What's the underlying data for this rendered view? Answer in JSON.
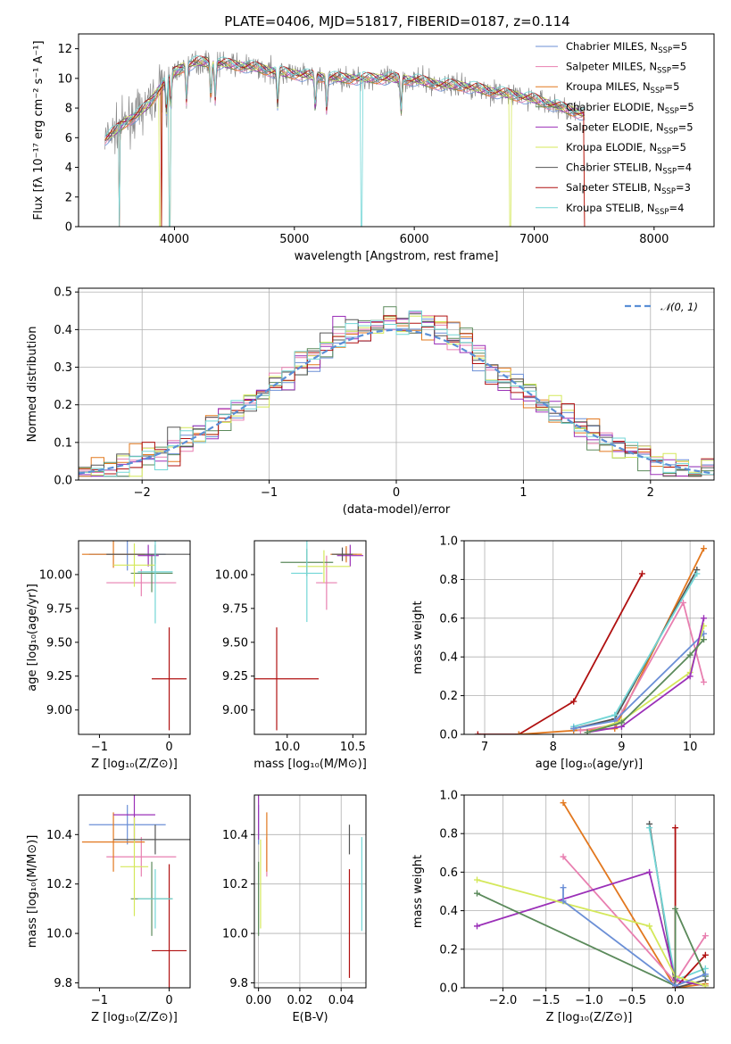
{
  "figure": {
    "title": "PLATE=0406, MJD=51817, FIBERID=0187, z=0.114"
  },
  "colors": {
    "Chabrier MILES": "#6b8fd6",
    "Salpeter MILES": "#e87fb0",
    "Kroupa MILES": "#e2781f",
    "Chabrier ELODIE": "#5b8a5b",
    "Salpeter ELODIE": "#9b30b8",
    "Kroupa ELODIE": "#d4e85a",
    "Chabrier STELIB": "#555555",
    "Salpeter STELIB": "#b01010",
    "Kroupa STELIB": "#72d6d6",
    "data": "#8a8a8a",
    "gauss": "#5a8fd6"
  },
  "chart_data": [
    {
      "id": "spectrum",
      "type": "line",
      "xlabel": "wavelength [Angstrom, rest frame]",
      "ylabel": "Flux [fλ 10⁻¹⁷ erg cm⁻² s⁻¹ A⁻¹]",
      "xlim": [
        3200,
        8500
      ],
      "ylim": [
        0,
        13
      ],
      "xticks": [
        4000,
        5000,
        6000,
        7000,
        8000
      ],
      "yticks": [
        0,
        2,
        4,
        6,
        8,
        10,
        12
      ],
      "legend_position": "top-right",
      "legend": [
        {
          "name": "Chabrier MILES",
          "nssp": "5"
        },
        {
          "name": "Salpeter MILES",
          "nssp": "5"
        },
        {
          "name": "Kroupa MILES",
          "nssp": "5"
        },
        {
          "name": "Chabrier ELODIE",
          "nssp": "5"
        },
        {
          "name": "Salpeter ELODIE",
          "nssp": "5"
        },
        {
          "name": "Kroupa ELODIE",
          "nssp": "5"
        },
        {
          "name": "Chabrier STELIB",
          "nssp": "4"
        },
        {
          "name": "Salpeter STELIB",
          "nssp": "3"
        },
        {
          "name": "Kroupa STELIB",
          "nssp": "4"
        }
      ],
      "continuum": [
        [
          3420,
          5.9
        ],
        [
          3500,
          6.4
        ],
        [
          3600,
          7.1
        ],
        [
          3700,
          7.6
        ],
        [
          3800,
          8.4
        ],
        [
          3900,
          9.6
        ],
        [
          4000,
          10.4
        ],
        [
          4100,
          10.9
        ],
        [
          4200,
          11.1
        ],
        [
          4300,
          11.1
        ],
        [
          4400,
          11.0
        ],
        [
          4500,
          10.9
        ],
        [
          4600,
          10.8
        ],
        [
          4700,
          10.7
        ],
        [
          4800,
          10.5
        ],
        [
          4900,
          10.4
        ],
        [
          5000,
          10.3
        ],
        [
          5200,
          10.1
        ],
        [
          5400,
          10.0
        ],
        [
          5600,
          10.0
        ],
        [
          5800,
          10.0
        ],
        [
          6000,
          9.9
        ],
        [
          6200,
          9.6
        ],
        [
          6400,
          9.5
        ],
        [
          6600,
          9.2
        ],
        [
          6800,
          8.9
        ],
        [
          7000,
          8.6
        ],
        [
          7200,
          8.1
        ],
        [
          7400,
          7.6
        ]
      ]
    },
    {
      "id": "residuals",
      "type": "line",
      "xlabel": "(data-model)/error",
      "ylabel": "Normed distribution",
      "xlim": [
        -2.5,
        2.5
      ],
      "ylim": [
        0,
        0.51
      ],
      "xticks": [
        -2,
        -1,
        0,
        1,
        2
      ],
      "yticks": [
        0.0,
        0.1,
        0.2,
        0.3,
        0.4,
        0.5
      ],
      "grid": true,
      "legend_position": "top-right",
      "legend": [
        {
          "name": "𝒩(0, 1)"
        }
      ],
      "bin_width": 0.1
    },
    {
      "id": "age-vs-Z",
      "type": "scatter",
      "xlabel": "Z [log₁₀(Z/Z⊙)]",
      "ylabel": "age  [log₁₀(age/yr)]",
      "xlim": [
        -1.3,
        0.3
      ],
      "ylim": [
        8.82,
        10.25
      ],
      "xticks": [
        -1,
        0
      ],
      "yticks": [
        9.0,
        9.25,
        9.5,
        9.75,
        10.0
      ],
      "points": [
        {
          "model": "Chabrier MILES",
          "x": -0.6,
          "y": 10.15,
          "xerr": 0.55,
          "yerr": 0.12
        },
        {
          "model": "Salpeter MILES",
          "x": -0.4,
          "y": 9.94,
          "xerr": 0.5,
          "yerr": 0.1
        },
        {
          "model": "Kroupa MILES",
          "x": -0.8,
          "y": 10.15,
          "xerr": 0.45,
          "yerr": 0.1
        },
        {
          "model": "Chabrier ELODIE",
          "x": -0.25,
          "y": 10.01,
          "xerr": 0.3,
          "yerr": 0.14
        },
        {
          "model": "Salpeter ELODIE",
          "x": -0.3,
          "y": 10.14,
          "xerr": 0.15,
          "yerr": 0.08
        },
        {
          "model": "Kroupa ELODIE",
          "x": -0.5,
          "y": 10.07,
          "xerr": 0.3,
          "yerr": 0.16
        },
        {
          "model": "Chabrier STELIB",
          "x": -0.2,
          "y": 10.15,
          "xerr": 0.7,
          "yerr": 0.07
        },
        {
          "model": "Salpeter STELIB",
          "x": 0.0,
          "y": 9.23,
          "xerr": 0.25,
          "yerr": 0.38
        },
        {
          "model": "Kroupa STELIB",
          "x": -0.2,
          "y": 10.02,
          "xerr": 0.25,
          "yerr": 0.38
        }
      ]
    },
    {
      "id": "age-vs-mass",
      "type": "scatter",
      "xlabel": "mass [log₁₀(M/M⊙)]",
      "ylabel": "",
      "xlim": [
        9.75,
        10.6
      ],
      "ylim": [
        8.82,
        10.25
      ],
      "xticks": [
        10.0,
        10.5
      ],
      "yticks": [
        9.0,
        9.25,
        9.5,
        9.75,
        10.0
      ],
      "points": [
        {
          "model": "Chabrier MILES",
          "x": 10.45,
          "y": 10.15,
          "xerr": 0.08,
          "yerr": 0.05
        },
        {
          "model": "Salpeter MILES",
          "x": 10.3,
          "y": 9.94,
          "xerr": 0.08,
          "yerr": 0.2
        },
        {
          "model": "Kroupa MILES",
          "x": 10.45,
          "y": 10.15,
          "xerr": 0.12,
          "yerr": 0.06
        },
        {
          "model": "Chabrier ELODIE",
          "x": 10.15,
          "y": 10.09,
          "xerr": 0.2,
          "yerr": 0.1
        },
        {
          "model": "Salpeter ELODIE",
          "x": 10.48,
          "y": 10.14,
          "xerr": 0.1,
          "yerr": 0.08
        },
        {
          "model": "Kroupa ELODIE",
          "x": 10.28,
          "y": 10.06,
          "xerr": 0.2,
          "yerr": 0.12
        },
        {
          "model": "Chabrier STELIB",
          "x": 10.42,
          "y": 10.15,
          "xerr": 0.08,
          "yerr": 0.05
        },
        {
          "model": "Salpeter STELIB",
          "x": 9.92,
          "y": 9.23,
          "xerr": 0.32,
          "yerr": 0.38
        },
        {
          "model": "Kroupa STELIB",
          "x": 10.15,
          "y": 10.01,
          "xerr": 0.12,
          "yerr": 0.36
        }
      ]
    },
    {
      "id": "mass-weight-vs-age",
      "type": "line",
      "xlabel": "age  [log₁₀(age/yr)]",
      "ylabel": "mass weight",
      "xlim": [
        6.7,
        10.35
      ],
      "ylim": [
        0,
        1.0
      ],
      "xticks": [
        7,
        8,
        9,
        10
      ],
      "yticks": [
        0.0,
        0.2,
        0.4,
        0.6,
        0.8,
        1.0
      ],
      "grid": true,
      "series": [
        {
          "model": "Salpeter STELIB",
          "x": [
            6.9,
            7.5,
            8.3,
            9.3
          ],
          "y": [
            0.0,
            0.0,
            0.17,
            0.83
          ]
        },
        {
          "model": "Kroupa MILES",
          "x": [
            7.5,
            8.3,
            8.9,
            10.2
          ],
          "y": [
            0.0,
            0.02,
            0.03,
            0.96
          ]
        },
        {
          "model": "Chabrier STELIB",
          "x": [
            8.3,
            8.9,
            10.1
          ],
          "y": [
            0.03,
            0.08,
            0.85
          ]
        },
        {
          "model": "Kroupa STELIB",
          "x": [
            8.3,
            8.9,
            10.1
          ],
          "y": [
            0.04,
            0.1,
            0.83
          ]
        },
        {
          "model": "Salpeter MILES",
          "x": [
            8.4,
            8.9,
            9.9,
            10.2
          ],
          "y": [
            0.02,
            0.05,
            0.68,
            0.27
          ]
        },
        {
          "model": "Chabrier MILES",
          "x": [
            8.3,
            8.9,
            10.2
          ],
          "y": [
            0.03,
            0.07,
            0.52
          ]
        },
        {
          "model": "Kroupa ELODIE",
          "x": [
            8.5,
            9.0,
            10.0,
            10.2
          ],
          "y": [
            0.01,
            0.07,
            0.32,
            0.56
          ]
        },
        {
          "model": "Salpeter ELODIE",
          "x": [
            8.5,
            9.0,
            10.0,
            10.2
          ],
          "y": [
            0.01,
            0.04,
            0.3,
            0.6
          ]
        },
        {
          "model": "Chabrier ELODIE",
          "x": [
            8.5,
            9.0,
            10.0,
            10.2
          ],
          "y": [
            0.01,
            0.06,
            0.41,
            0.49
          ]
        }
      ]
    },
    {
      "id": "mass-vs-Z",
      "type": "scatter",
      "xlabel": "Z [log₁₀(Z/Z⊙)]",
      "ylabel": "mass [log₁₀(M/M⊙)]",
      "xlim": [
        -1.3,
        0.3
      ],
      "ylim": [
        9.78,
        10.56
      ],
      "xticks": [
        -1,
        0
      ],
      "yticks": [
        9.8,
        10.0,
        10.2,
        10.4
      ],
      "points": [
        {
          "model": "Chabrier MILES",
          "x": -0.6,
          "y": 10.44,
          "xerr": 0.55,
          "yerr": 0.08
        },
        {
          "model": "Salpeter MILES",
          "x": -0.4,
          "y": 10.31,
          "xerr": 0.5,
          "yerr": 0.08
        },
        {
          "model": "Kroupa MILES",
          "x": -0.8,
          "y": 10.37,
          "xerr": 0.45,
          "yerr": 0.12
        },
        {
          "model": "Chabrier ELODIE",
          "x": -0.25,
          "y": 10.14,
          "xerr": 0.3,
          "yerr": 0.15
        },
        {
          "model": "Salpeter ELODIE",
          "x": -0.5,
          "y": 10.48,
          "xerr": 0.3,
          "yerr": 0.1
        },
        {
          "model": "Kroupa ELODIE",
          "x": -0.5,
          "y": 10.27,
          "xerr": 0.2,
          "yerr": 0.2
        },
        {
          "model": "Chabrier STELIB",
          "x": -0.2,
          "y": 10.38,
          "xerr": 0.6,
          "yerr": 0.06
        },
        {
          "model": "Salpeter STELIB",
          "x": 0.0,
          "y": 9.93,
          "xerr": 0.25,
          "yerr": 0.35
        },
        {
          "model": "Kroupa STELIB",
          "x": -0.2,
          "y": 10.14,
          "xerr": 0.25,
          "yerr": 0.12
        }
      ]
    },
    {
      "id": "mass-vs-ebv",
      "type": "scatter",
      "xlabel": "E(B-V)",
      "ylabel": "",
      "xlim": [
        -0.002,
        0.052
      ],
      "ylim": [
        9.78,
        10.56
      ],
      "xticks": [
        0.0,
        0.02,
        0.04
      ],
      "yticks": [
        9.8,
        10.0,
        10.2,
        10.4
      ],
      "grid": true,
      "points": [
        {
          "model": "Chabrier MILES",
          "x": 0.0,
          "y": 10.44,
          "xerr": 0,
          "yerr": 0.08
        },
        {
          "model": "Salpeter MILES",
          "x": 0.004,
          "y": 10.31,
          "xerr": 0,
          "yerr": 0.08
        },
        {
          "model": "Kroupa MILES",
          "x": 0.004,
          "y": 10.37,
          "xerr": 0,
          "yerr": 0.12
        },
        {
          "model": "Chabrier ELODIE",
          "x": 0.0,
          "y": 10.14,
          "xerr": 0,
          "yerr": 0.15
        },
        {
          "model": "Salpeter ELODIE",
          "x": 0.0,
          "y": 10.48,
          "xerr": 0,
          "yerr": 0.1
        },
        {
          "model": "Kroupa ELODIE",
          "x": 0.001,
          "y": 10.2,
          "xerr": 0,
          "yerr": 0.18
        },
        {
          "model": "Chabrier STELIB",
          "x": 0.044,
          "y": 10.38,
          "xerr": 0,
          "yerr": 0.06
        },
        {
          "model": "Salpeter STELIB",
          "x": 0.044,
          "y": 10.04,
          "xerr": 0,
          "yerr": 0.22
        },
        {
          "model": "Kroupa STELIB",
          "x": 0.05,
          "y": 10.2,
          "xerr": 0,
          "yerr": 0.19
        }
      ]
    },
    {
      "id": "mass-weight-vs-Z",
      "type": "line",
      "xlabel": "Z [log₁₀(Z/Z⊙)]",
      "ylabel": "mass weight",
      "xlim": [
        -2.45,
        0.45
      ],
      "ylim": [
        0,
        1.0
      ],
      "xticks": [
        -2.0,
        -1.5,
        -1.0,
        -0.5,
        0.0
      ],
      "yticks": [
        0.0,
        0.2,
        0.4,
        0.6,
        0.8,
        1.0
      ],
      "grid": true,
      "series": [
        {
          "model": "Kroupa MILES",
          "x": [
            -1.3,
            0.0,
            0.35
          ],
          "y": [
            0.96,
            0.0,
            0.02
          ]
        },
        {
          "model": "Chabrier STELIB",
          "x": [
            -0.3,
            0.0,
            0.35
          ],
          "y": [
            0.85,
            0.0,
            0.04
          ]
        },
        {
          "model": "Kroupa STELIB",
          "x": [
            -0.3,
            0.0,
            0.35
          ],
          "y": [
            0.83,
            0.04,
            0.1
          ]
        },
        {
          "model": "Salpeter STELIB",
          "x": [
            0.0,
            0.0,
            0.35
          ],
          "y": [
            0.83,
            0.0,
            0.17
          ]
        },
        {
          "model": "Salpeter MILES",
          "x": [
            -1.3,
            0.0,
            0.35
          ],
          "y": [
            0.68,
            0.03,
            0.27
          ]
        },
        {
          "model": "Salpeter ELODIE",
          "x": [
            -2.3,
            -0.3,
            0.0,
            0.35
          ],
          "y": [
            0.32,
            0.6,
            0.04,
            0.01
          ]
        },
        {
          "model": "Kroupa ELODIE",
          "x": [
            -2.3,
            -0.3,
            0.0,
            0.35
          ],
          "y": [
            0.56,
            0.32,
            0.06,
            0.01
          ]
        },
        {
          "model": "Chabrier ELODIE",
          "x": [
            -2.3,
            0.0,
            0.0,
            0.35
          ],
          "y": [
            0.49,
            0.01,
            0.41,
            0.06
          ]
        },
        {
          "model": "Chabrier MILES",
          "x": [
            -1.3,
            -1.3,
            0.0,
            0.35
          ],
          "y": [
            0.52,
            0.45,
            0.01,
            0.07
          ]
        }
      ]
    }
  ]
}
